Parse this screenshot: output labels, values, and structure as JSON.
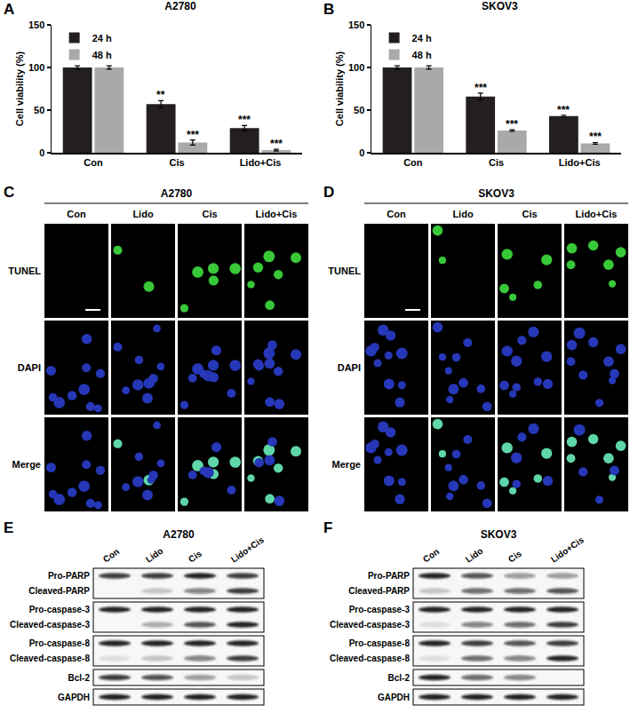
{
  "chart_data": [
    {
      "type": "bar",
      "panel": "A",
      "title": "A2780",
      "categories": [
        "Con",
        "Cis",
        "Lido+Cis"
      ],
      "series": [
        {
          "name": "24 h",
          "color": "#231f20",
          "values": [
            100,
            57,
            29
          ],
          "errors": [
            2,
            4,
            3
          ],
          "significance": [
            null,
            "**",
            "***"
          ]
        },
        {
          "name": "48 h",
          "color": "#a9a9a9",
          "values": [
            100,
            12,
            3
          ],
          "errors": [
            2,
            3,
            1
          ],
          "significance": [
            null,
            "***",
            "***"
          ]
        }
      ],
      "y_label": "Cell viability (%)",
      "ylim": [
        0,
        150
      ],
      "yticks": [
        0,
        50,
        100,
        150
      ],
      "legend": "top-left"
    },
    {
      "type": "bar",
      "panel": "B",
      "title": "SKOV3",
      "categories": [
        "Con",
        "Cis",
        "Lido+Cis"
      ],
      "series": [
        {
          "name": "24 h",
          "color": "#231f20",
          "values": [
            100,
            66,
            43
          ],
          "errors": [
            2,
            4,
            1
          ],
          "significance": [
            null,
            "***",
            "***"
          ]
        },
        {
          "name": "48 h",
          "color": "#a9a9a9",
          "values": [
            100,
            26,
            11
          ],
          "errors": [
            2,
            1,
            1
          ],
          "significance": [
            null,
            "***",
            "***"
          ]
        }
      ],
      "y_label": "Cell viability (%)",
      "ylim": [
        0,
        150
      ],
      "yticks": [
        0,
        50,
        100,
        150
      ],
      "legend": "top-left"
    }
  ],
  "tunel_panels": [
    {
      "panel": "C",
      "title": "A2780",
      "columns": [
        "Con",
        "Lido",
        "Cis",
        "Lido+Cis"
      ],
      "rows": [
        "TUNEL",
        "DAPI",
        "Merge"
      ]
    },
    {
      "panel": "D",
      "title": "SKOV3",
      "columns": [
        "Con",
        "Lido",
        "Cis",
        "Lido+Cis"
      ],
      "rows": [
        "TUNEL",
        "DAPI",
        "Merge"
      ]
    }
  ],
  "western_blots": [
    {
      "panel": "E",
      "title": "A2780",
      "lanes": [
        "Con",
        "Lido",
        "Cis",
        "Lido+Cis"
      ],
      "boxes": [
        {
          "rows": [
            {
              "label": "Pro-PARP",
              "bands": [
                0.8,
                0.8,
                0.9,
                0.8
              ]
            },
            {
              "label": "Cleaved-PARP",
              "bands": [
                0,
                0.2,
                0.5,
                0.8
              ]
            }
          ]
        },
        {
          "rows": [
            {
              "label": "Pro-caspase-3",
              "bands": [
                0.9,
                0.9,
                0.9,
                0.9
              ]
            },
            {
              "label": "Cleaved-caspase-3",
              "bands": [
                0,
                0.3,
                0.7,
                0.9
              ]
            }
          ]
        },
        {
          "rows": [
            {
              "label": "Pro-caspase-8",
              "bands": [
                0.9,
                0.9,
                0.9,
                0.9
              ]
            },
            {
              "label": "Cleaved-caspase-8",
              "bands": [
                0.1,
                0.2,
                0.5,
                0.8
              ]
            }
          ]
        },
        {
          "rows": [
            {
              "label": "Bcl-2",
              "bands": [
                0.8,
                0.7,
                0.4,
                0.2
              ]
            }
          ]
        },
        {
          "rows": [
            {
              "label": "GAPDH",
              "bands": [
                0.9,
                0.9,
                0.9,
                0.9
              ]
            }
          ]
        }
      ]
    },
    {
      "panel": "F",
      "title": "SKOV3",
      "lanes": [
        "Con",
        "Lido",
        "Cis",
        "Lido+Cis"
      ],
      "boxes": [
        {
          "rows": [
            {
              "label": "Pro-PARP",
              "bands": [
                0.9,
                0.7,
                0.4,
                0.4
              ]
            },
            {
              "label": "Cleaved-PARP",
              "bands": [
                0.2,
                0.6,
                0.6,
                0.7
              ]
            }
          ]
        },
        {
          "rows": [
            {
              "label": "Pro-caspase-3",
              "bands": [
                0.9,
                0.9,
                0.9,
                0.9
              ]
            },
            {
              "label": "Cleaved-caspase-3",
              "bands": [
                0.1,
                0.5,
                0.6,
                0.8
              ]
            }
          ]
        },
        {
          "rows": [
            {
              "label": "Pro-caspase-8",
              "bands": [
                0.9,
                0.8,
                0.7,
                0.8
              ]
            },
            {
              "label": "Cleaved-caspase-8",
              "bands": [
                0.1,
                0.6,
                0.5,
                0.9
              ]
            }
          ]
        },
        {
          "rows": [
            {
              "label": "Bcl-2",
              "bands": [
                0.9,
                0.6,
                0.5,
                0
              ]
            }
          ]
        },
        {
          "rows": [
            {
              "label": "GAPDH",
              "bands": [
                0.9,
                0.9,
                0.9,
                0.9
              ]
            }
          ]
        }
      ]
    }
  ]
}
